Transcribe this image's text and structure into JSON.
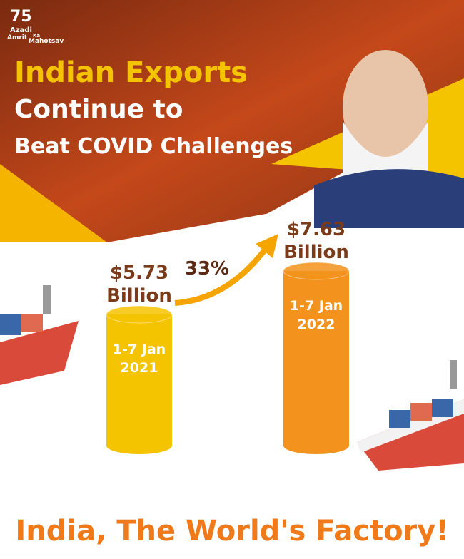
{
  "logo": {
    "number": "75",
    "words": [
      "Azadi",
      "Ka",
      "Amrit",
      "Mahotsav"
    ]
  },
  "headline": [
    "Indian Exports",
    "Continue to",
    "Beat COVID Challenges"
  ],
  "chart_data": {
    "type": "bar",
    "categories": [
      [
        "1-7 Jan",
        "2021"
      ],
      [
        "1-7 Jan",
        "2022"
      ]
    ],
    "values": [
      5.73,
      7.63
    ],
    "value_labels": [
      [
        "$5.73",
        "Billion"
      ],
      [
        "$7.63",
        "Billion"
      ]
    ],
    "colors": [
      "#f5c400",
      "#f3921c"
    ],
    "annotation": "33%"
  },
  "footer": "India, The World's Factory!"
}
